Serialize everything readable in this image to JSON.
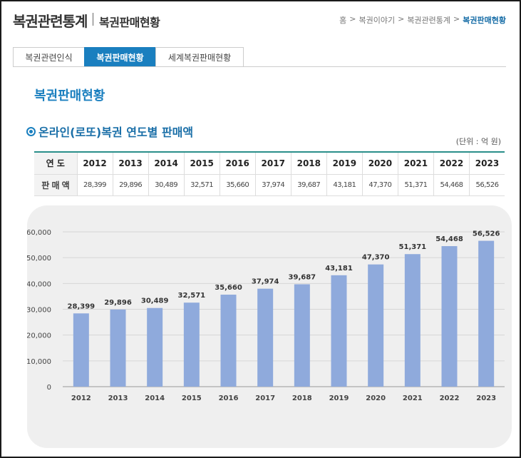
{
  "header": {
    "title": "복권관련통계",
    "subtitle": "복권판매현황",
    "breadcrumb": [
      "홈",
      ">",
      "복권이야기",
      ">",
      "복권관련통계",
      ">",
      "복권판매현황"
    ]
  },
  "tabs": [
    {
      "label": "복권관련인식",
      "active": false
    },
    {
      "label": "복권판매현황",
      "active": true
    },
    {
      "label": "세계복권판매현황",
      "active": false
    }
  ],
  "section_title": "복권판매현황",
  "sub_title": "온라인(로또)복권 연도별 판매액",
  "unit": "(단위 : 억 원)",
  "table": {
    "row_year_label": "연 도",
    "row_sales_label": "판 매 액",
    "years": [
      "2012",
      "2013",
      "2014",
      "2015",
      "2016",
      "2017",
      "2018",
      "2019",
      "2020",
      "2021",
      "2022",
      "2023"
    ],
    "sales": [
      "28,399",
      "29,896",
      "30,489",
      "32,571",
      "35,660",
      "37,974",
      "39,687",
      "43,181",
      "47,370",
      "51,371",
      "54,468",
      "56,526"
    ]
  },
  "colors": {
    "accent": "#1a7fbf",
    "bar": "#8faadc",
    "table_top": "#2a8f8a"
  },
  "chart_data": {
    "type": "bar",
    "categories": [
      "2012",
      "2013",
      "2014",
      "2015",
      "2016",
      "2017",
      "2018",
      "2019",
      "2020",
      "2021",
      "2022",
      "2023"
    ],
    "values": [
      28399,
      29896,
      30489,
      32571,
      35660,
      37974,
      39687,
      43181,
      47370,
      51371,
      54468,
      56526
    ],
    "data_labels": [
      "28,399",
      "29,896",
      "30,489",
      "32,571",
      "35,660",
      "37,974",
      "39,687",
      "43,181",
      "47,370",
      "51,371",
      "54,468",
      "56,526"
    ],
    "y_ticks": [
      0,
      10000,
      20000,
      30000,
      40000,
      50000,
      60000
    ],
    "y_tick_labels": [
      "0",
      "10,000",
      "20,000",
      "30,000",
      "40,000",
      "50,000",
      "60,000"
    ],
    "ylim": [
      0,
      60000
    ],
    "title": "",
    "xlabel": "",
    "ylabel": "",
    "grid": true
  }
}
